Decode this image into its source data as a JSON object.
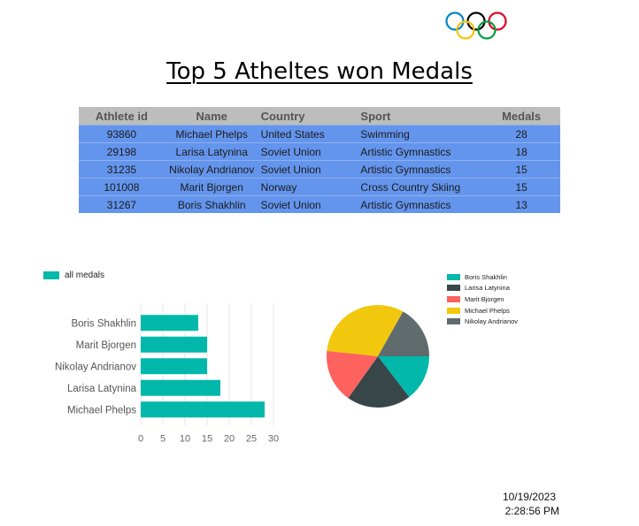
{
  "report": {
    "title": "Top 5 Atheltes won Medals",
    "logo": "olympic-rings",
    "date": "10/19/2023",
    "time": "2:28:56 PM"
  },
  "table": {
    "headers": [
      "Athlete id",
      "Name",
      "Country",
      "Sport",
      "Medals"
    ],
    "rows": [
      [
        "93860",
        "Michael Phelps",
        "United States",
        "Swimming",
        "28"
      ],
      [
        "29198",
        "Larisa Latynina",
        "Soviet Union",
        "Artistic Gymnastics",
        "18"
      ],
      [
        "31235",
        "Nikolay Andrianov",
        "Soviet Union",
        "Artistic Gymnastics",
        "15"
      ],
      [
        "101008",
        "Marit Bjorgen",
        "Norway",
        "Cross Country Skiing",
        "15"
      ],
      [
        "31267",
        "Boris Shakhlin",
        "Soviet Union",
        "Artistic Gymnastics",
        "13"
      ]
    ],
    "colors": {
      "header_bg": "#bdbdbd",
      "row_bg": "#6495ed"
    }
  },
  "chart_data": [
    {
      "type": "bar",
      "orientation": "horizontal",
      "categories": [
        "Boris Shakhlin",
        "Marit Bjorgen",
        "Nikolay Andrianov",
        "Larisa Latynina",
        "Michael Phelps"
      ],
      "series": [
        {
          "name": "all medals",
          "values": [
            13,
            15,
            15,
            18,
            28
          ],
          "color": "#01b8aa"
        }
      ],
      "xlim": [
        0,
        30
      ],
      "xticks": [
        0,
        5,
        10,
        15,
        20,
        25,
        30
      ],
      "grid": true,
      "legend": "top-left"
    },
    {
      "type": "pie",
      "labels": [
        "Boris Shakhlin",
        "Larisa Latynina",
        "Marit Bjorgen",
        "Michael Phelps",
        "Nikolay Andrianov"
      ],
      "values": [
        13,
        18,
        15,
        28,
        15
      ],
      "colors": [
        "#01b8aa",
        "#374649",
        "#fd625e",
        "#f2c80f",
        "#5f6b6d"
      ],
      "legend": "top-right"
    }
  ]
}
